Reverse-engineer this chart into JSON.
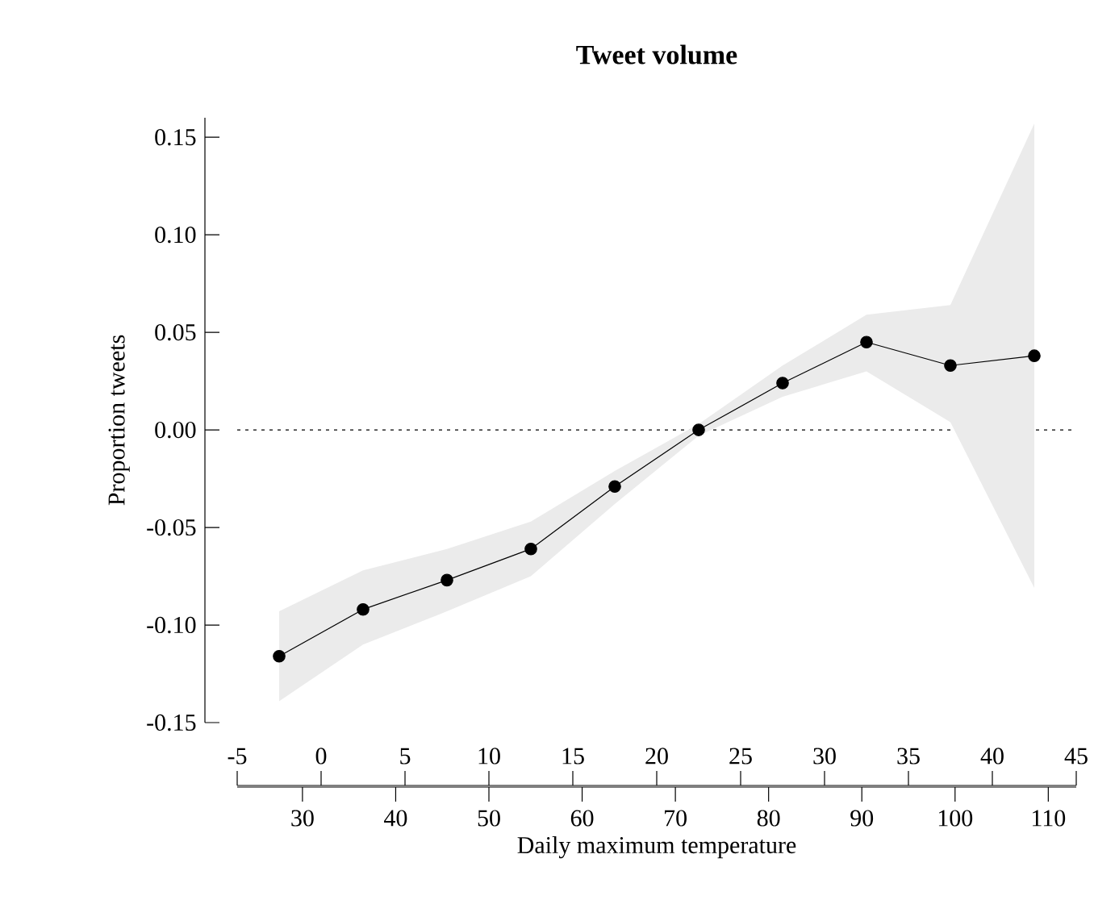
{
  "chart_data": {
    "type": "line",
    "title": "Tweet volume",
    "xlabel": "Daily maximum temperature",
    "ylabel": "Proportion tweets",
    "x": [
      -2.5,
      2.5,
      7.5,
      12.5,
      17.5,
      22.5,
      27.5,
      32.5,
      37.5,
      42.5
    ],
    "series": [
      {
        "color": "#000000",
        "values": [
          -0.116,
          -0.092,
          -0.077,
          -0.061,
          -0.029,
          0.0,
          0.024,
          0.045,
          0.033,
          0.038
        ],
        "lower": [
          -0.139,
          -0.11,
          -0.093,
          -0.075,
          -0.038,
          -0.003,
          0.017,
          0.03,
          0.004,
          -0.081
        ],
        "upper": [
          -0.093,
          -0.072,
          -0.061,
          -0.047,
          -0.021,
          0.003,
          0.033,
          0.059,
          0.064,
          0.157
        ]
      }
    ],
    "xlim": [
      -5,
      45
    ],
    "xticks": [
      -5,
      0,
      5,
      10,
      15,
      20,
      25,
      30,
      35,
      40,
      45
    ],
    "x2lim": [
      23,
      113
    ],
    "x2ticks": [
      30,
      40,
      50,
      60,
      70,
      80,
      90,
      100,
      110
    ],
    "ylim": [
      -0.15,
      0.16
    ],
    "yticks": [
      {
        "value": -0.15,
        "label": "-0.15"
      },
      {
        "value": -0.1,
        "label": "-0.10"
      },
      {
        "value": -0.05,
        "label": "-0.05"
      },
      {
        "value": 0,
        "label": "0.00"
      },
      {
        "value": 0.05,
        "label": "0.05"
      },
      {
        "value": 0.1,
        "label": "0.10"
      },
      {
        "value": 0.15,
        "label": "0.15"
      }
    ],
    "ref_lines": [
      {
        "axis": "y",
        "value": 0,
        "line_style": "dotted"
      }
    ],
    "marker": "circle",
    "line_style": "solid"
  }
}
